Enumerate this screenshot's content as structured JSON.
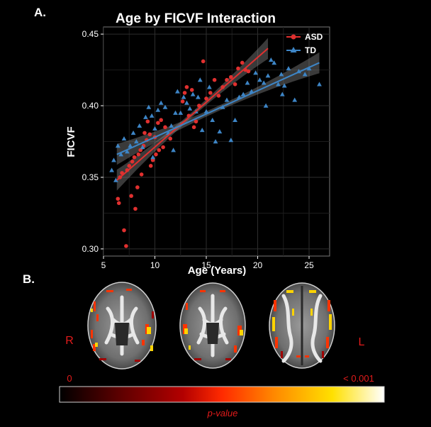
{
  "panel_a_label": "A.",
  "panel_b_label": "B.",
  "chart_data": {
    "type": "scatter",
    "title": "Age by FICVF Interaction",
    "xlabel": "Age (Years)",
    "ylabel": "FICVF",
    "xlim": [
      5,
      27
    ],
    "ylim": [
      0.295,
      0.455
    ],
    "xticks": [
      5,
      10,
      15,
      20,
      25
    ],
    "yticks": [
      0.3,
      0.35,
      0.4,
      0.45
    ],
    "ytick_labels": [
      "0.30",
      "0.35",
      "0.40",
      "0.45"
    ],
    "grid": true,
    "legend_position": "top-right",
    "series": [
      {
        "name": "ASD",
        "marker": "circle",
        "color": "#e0302f",
        "fit": {
          "x_start": 6.3,
          "x_end": 21.0,
          "y_start": 0.348,
          "y_end": 0.44
        },
        "points": [
          [
            6.4,
            0.335
          ],
          [
            6.5,
            0.332
          ],
          [
            6.6,
            0.35
          ],
          [
            6.8,
            0.353
          ],
          [
            7.0,
            0.313
          ],
          [
            7.2,
            0.302
          ],
          [
            7.3,
            0.355
          ],
          [
            7.5,
            0.358
          ],
          [
            7.7,
            0.337
          ],
          [
            7.8,
            0.361
          ],
          [
            8.0,
            0.364
          ],
          [
            8.1,
            0.328
          ],
          [
            8.3,
            0.343
          ],
          [
            8.4,
            0.366
          ],
          [
            8.6,
            0.369
          ],
          [
            8.7,
            0.352
          ],
          [
            8.9,
            0.372
          ],
          [
            9.0,
            0.381
          ],
          [
            9.2,
            0.376
          ],
          [
            9.3,
            0.389
          ],
          [
            9.5,
            0.38
          ],
          [
            9.6,
            0.358
          ],
          [
            9.8,
            0.362
          ],
          [
            10.0,
            0.378
          ],
          [
            10.1,
            0.366
          ],
          [
            10.3,
            0.388
          ],
          [
            10.4,
            0.369
          ],
          [
            10.6,
            0.39
          ],
          [
            10.8,
            0.371
          ],
          [
            11.0,
            0.385
          ],
          [
            12.7,
            0.403
          ],
          [
            12.9,
            0.409
          ],
          [
            13.1,
            0.413
          ],
          [
            13.3,
            0.393
          ],
          [
            13.6,
            0.411
          ],
          [
            14.0,
            0.389
          ],
          [
            14.3,
            0.4
          ],
          [
            14.7,
            0.431
          ],
          [
            15.0,
            0.405
          ],
          [
            15.4,
            0.409
          ],
          [
            15.8,
            0.418
          ],
          [
            16.2,
            0.407
          ],
          [
            16.6,
            0.413
          ],
          [
            17.0,
            0.418
          ],
          [
            17.4,
            0.42
          ],
          [
            17.8,
            0.415
          ],
          [
            18.1,
            0.426
          ],
          [
            18.5,
            0.43
          ],
          [
            18.8,
            0.425
          ],
          [
            19.1,
            0.424
          ],
          [
            13.8,
            0.385
          ],
          [
            11.5,
            0.377
          ]
        ]
      },
      {
        "name": "TD",
        "marker": "triangle",
        "color": "#3d85c6",
        "fit": {
          "x_start": 6.3,
          "x_end": 26.0,
          "y_start": 0.366,
          "y_end": 0.43
        },
        "points": [
          [
            5.8,
            0.355
          ],
          [
            6.0,
            0.362
          ],
          [
            6.2,
            0.348
          ],
          [
            6.4,
            0.372
          ],
          [
            6.7,
            0.366
          ],
          [
            7.0,
            0.377
          ],
          [
            7.3,
            0.368
          ],
          [
            7.6,
            0.372
          ],
          [
            7.9,
            0.381
          ],
          [
            8.2,
            0.375
          ],
          [
            8.5,
            0.386
          ],
          [
            8.8,
            0.371
          ],
          [
            9.1,
            0.392
          ],
          [
            9.4,
            0.399
          ],
          [
            9.7,
            0.393
          ],
          [
            10.0,
            0.384
          ],
          [
            10.3,
            0.397
          ],
          [
            10.6,
            0.402
          ],
          [
            11.0,
            0.399
          ],
          [
            11.3,
            0.381
          ],
          [
            11.6,
            0.386
          ],
          [
            12.0,
            0.395
          ],
          [
            12.2,
            0.41
          ],
          [
            12.5,
            0.395
          ],
          [
            12.8,
            0.406
          ],
          [
            13.1,
            0.402
          ],
          [
            13.4,
            0.398
          ],
          [
            13.7,
            0.408
          ],
          [
            14.0,
            0.396
          ],
          [
            14.2,
            0.406
          ],
          [
            14.6,
            0.383
          ],
          [
            15.0,
            0.396
          ],
          [
            15.3,
            0.413
          ],
          [
            15.6,
            0.39
          ],
          [
            15.9,
            0.375
          ],
          [
            16.3,
            0.382
          ],
          [
            16.6,
            0.399
          ],
          [
            17.0,
            0.404
          ],
          [
            17.4,
            0.376
          ],
          [
            17.8,
            0.39
          ],
          [
            18.2,
            0.406
          ],
          [
            18.6,
            0.408
          ],
          [
            19.0,
            0.416
          ],
          [
            19.4,
            0.41
          ],
          [
            19.8,
            0.423
          ],
          [
            20.2,
            0.418
          ],
          [
            20.6,
            0.416
          ],
          [
            21.0,
            0.421
          ],
          [
            21.3,
            0.432
          ],
          [
            21.6,
            0.43
          ],
          [
            22.0,
            0.415
          ],
          [
            22.3,
            0.422
          ],
          [
            22.6,
            0.414
          ],
          [
            23.0,
            0.426
          ],
          [
            24.0,
            0.424
          ],
          [
            25.0,
            0.426
          ],
          [
            26.0,
            0.415
          ],
          [
            20.8,
            0.4
          ],
          [
            22.4,
            0.408
          ],
          [
            23.6,
            0.404
          ],
          [
            24.6,
            0.422
          ],
          [
            9.8,
            0.364
          ],
          [
            11.8,
            0.369
          ],
          [
            14.4,
            0.418
          ]
        ]
      }
    ]
  },
  "brain_panel": {
    "left_side_label": "R",
    "right_side_label": "L",
    "scale_min_label": "0",
    "scale_max_label": "< 0.001",
    "scale_title": "p-value",
    "colormap": [
      "#000000",
      "#5a0000",
      "#b30000",
      "#ff2a00",
      "#ff8800",
      "#ffe000",
      "#ffffff"
    ]
  }
}
